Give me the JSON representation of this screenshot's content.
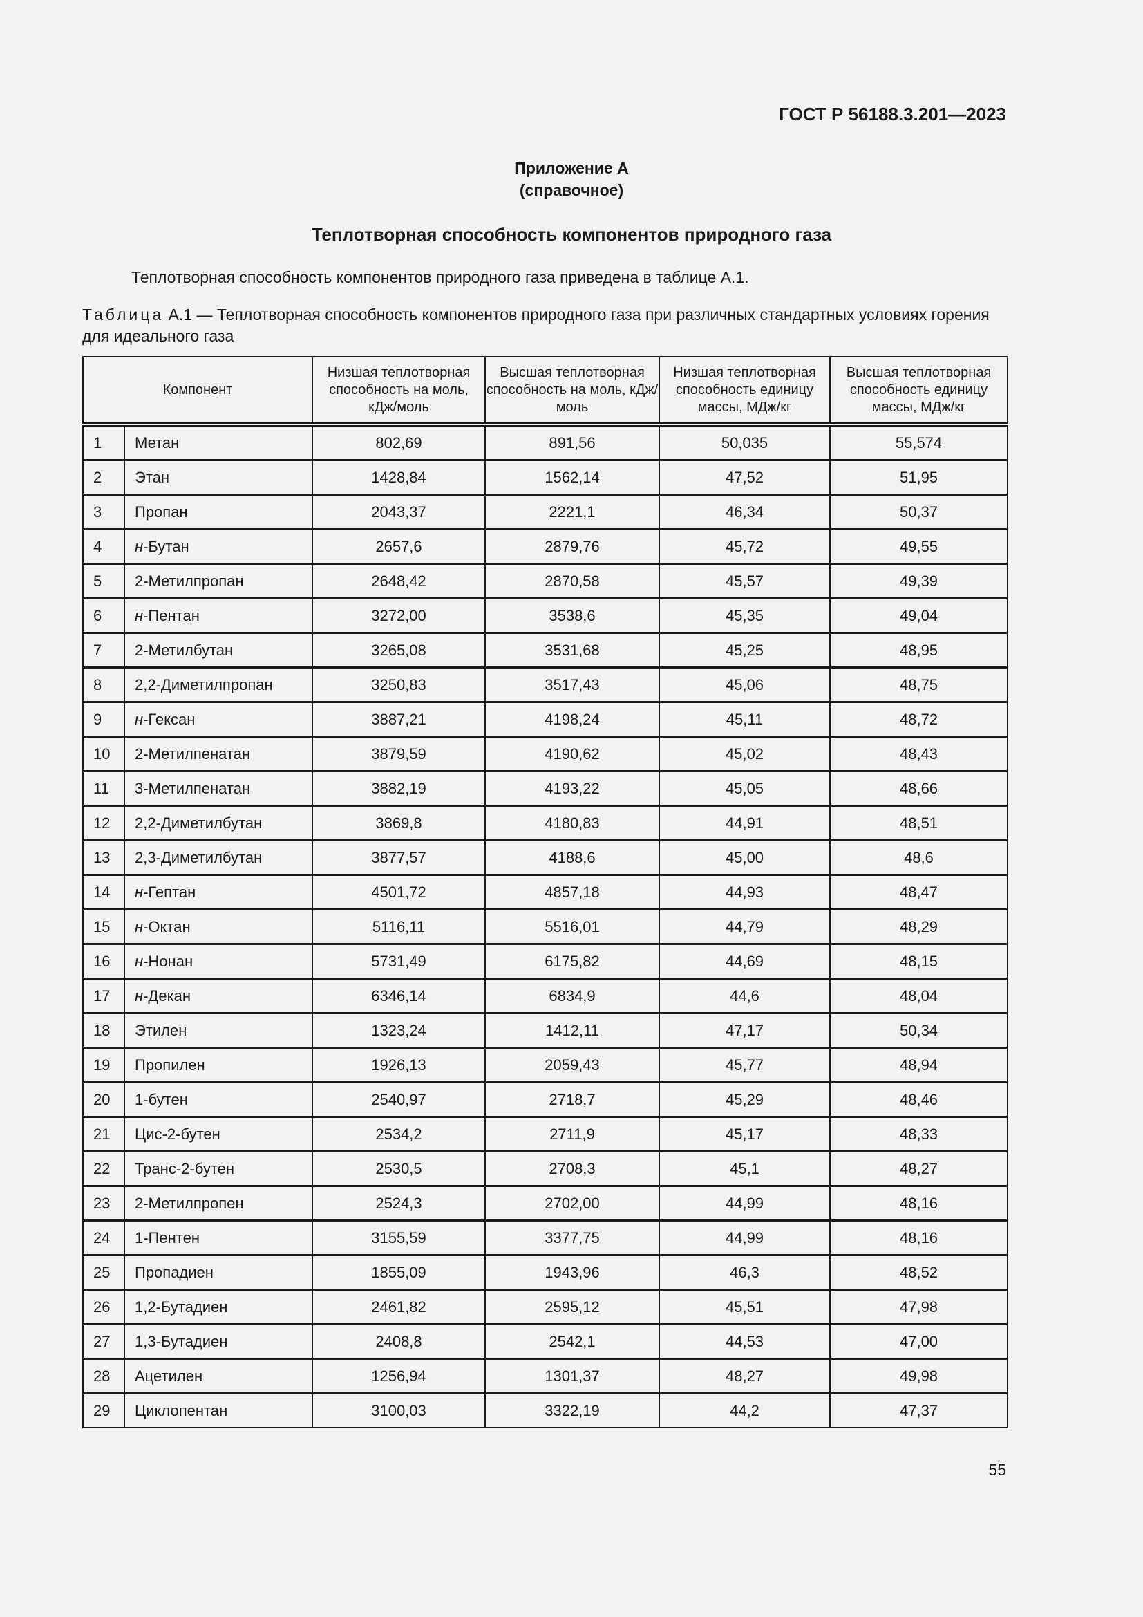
{
  "header": {
    "doc_code": "ГОСТ Р 56188.3.201—2023"
  },
  "appendix": {
    "title": "Приложение А",
    "type": "(справочное)"
  },
  "section_title": "Теплотворная способность компонентов природного газа",
  "intro": "Теплотворная способность компонентов природного газа приведена в таблице А.1.",
  "caption": {
    "label": "Таблица",
    "rest": " А.1 — Теплотворная способность компонентов природного газа при различных стандартных условиях горения для идеального газа"
  },
  "table": {
    "columns": [
      "Компонент",
      "Низшая теплотворная способность на моль, кДж/моль",
      "Высшая теплотворная способность на моль, кДж/моль",
      "Низшая теплотворная способность единицу массы, МДж/кг",
      "Высшая теплотворная способность единицу массы, МДж/кг"
    ],
    "rows": [
      {
        "n": "1",
        "prefix": "",
        "name": "Метан",
        "v": [
          "802,69",
          "891,56",
          "50,035",
          "55,574"
        ]
      },
      {
        "n": "2",
        "prefix": "",
        "name": "Этан",
        "v": [
          "1428,84",
          "1562,14",
          "47,52",
          "51,95"
        ]
      },
      {
        "n": "3",
        "prefix": "",
        "name": "Пропан",
        "v": [
          "2043,37",
          "2221,1",
          "46,34",
          "50,37"
        ]
      },
      {
        "n": "4",
        "prefix": "н",
        "name": "-Бутан",
        "v": [
          "2657,6",
          "2879,76",
          "45,72",
          "49,55"
        ]
      },
      {
        "n": "5",
        "prefix": "",
        "name": "2-Метилпропан",
        "v": [
          "2648,42",
          "2870,58",
          "45,57",
          "49,39"
        ]
      },
      {
        "n": "6",
        "prefix": "н",
        "name": "-Пентан",
        "v": [
          "3272,00",
          "3538,6",
          "45,35",
          "49,04"
        ]
      },
      {
        "n": "7",
        "prefix": "",
        "name": "2-Метилбутан",
        "v": [
          "3265,08",
          "3531,68",
          "45,25",
          "48,95"
        ]
      },
      {
        "n": "8",
        "prefix": "",
        "name": "2,2-Диметилпропан",
        "v": [
          "3250,83",
          "3517,43",
          "45,06",
          "48,75"
        ]
      },
      {
        "n": "9",
        "prefix": "н",
        "name": "-Гексан",
        "v": [
          "3887,21",
          "4198,24",
          "45,11",
          "48,72"
        ]
      },
      {
        "n": "10",
        "prefix": "",
        "name": "2-Метилпенатан",
        "v": [
          "3879,59",
          "4190,62",
          "45,02",
          "48,43"
        ]
      },
      {
        "n": "11",
        "prefix": "",
        "name": "3-Метилпенатан",
        "v": [
          "3882,19",
          "4193,22",
          "45,05",
          "48,66"
        ]
      },
      {
        "n": "12",
        "prefix": "",
        "name": "2,2-Диметилбутан",
        "v": [
          "3869,8",
          "4180,83",
          "44,91",
          "48,51"
        ]
      },
      {
        "n": "13",
        "prefix": "",
        "name": "2,3-Диметилбутан",
        "v": [
          "3877,57",
          "4188,6",
          "45,00",
          "48,6"
        ]
      },
      {
        "n": "14",
        "prefix": "н",
        "name": "-Гептан",
        "v": [
          "4501,72",
          "4857,18",
          "44,93",
          "48,47"
        ]
      },
      {
        "n": "15",
        "prefix": "н",
        "name": "-Октан",
        "v": [
          "5116,11",
          "5516,01",
          "44,79",
          "48,29"
        ]
      },
      {
        "n": "16",
        "prefix": "н",
        "name": "-Нонан",
        "v": [
          "5731,49",
          "6175,82",
          "44,69",
          "48,15"
        ]
      },
      {
        "n": "17",
        "prefix": "н",
        "name": "-Декан",
        "v": [
          "6346,14",
          "6834,9",
          "44,6",
          "48,04"
        ]
      },
      {
        "n": "18",
        "prefix": "",
        "name": "Этилен",
        "v": [
          "1323,24",
          "1412,11",
          "47,17",
          "50,34"
        ]
      },
      {
        "n": "19",
        "prefix": "",
        "name": "Пропилен",
        "v": [
          "1926,13",
          "2059,43",
          "45,77",
          "48,94"
        ]
      },
      {
        "n": "20",
        "prefix": "",
        "name": "1-бутен",
        "v": [
          "2540,97",
          "2718,7",
          "45,29",
          "48,46"
        ]
      },
      {
        "n": "21",
        "prefix": "",
        "name": "Цис-2-бутен",
        "v": [
          "2534,2",
          "2711,9",
          "45,17",
          "48,33"
        ]
      },
      {
        "n": "22",
        "prefix": "",
        "name": "Транс-2-бутен",
        "v": [
          "2530,5",
          "2708,3",
          "45,1",
          "48,27"
        ]
      },
      {
        "n": "23",
        "prefix": "",
        "name": "2-Метилпропен",
        "v": [
          "2524,3",
          "2702,00",
          "44,99",
          "48,16"
        ]
      },
      {
        "n": "24",
        "prefix": "",
        "name": "1-Пентен",
        "v": [
          "3155,59",
          "3377,75",
          "44,99",
          "48,16"
        ]
      },
      {
        "n": "25",
        "prefix": "",
        "name": "Пропадиен",
        "v": [
          "1855,09",
          "1943,96",
          "46,3",
          "48,52"
        ]
      },
      {
        "n": "26",
        "prefix": "",
        "name": "1,2-Бутадиен",
        "v": [
          "2461,82",
          "2595,12",
          "45,51",
          "47,98"
        ]
      },
      {
        "n": "27",
        "prefix": "",
        "name": "1,3-Бутадиен",
        "v": [
          "2408,8",
          "2542,1",
          "44,53",
          "47,00"
        ]
      },
      {
        "n": "28",
        "prefix": "",
        "name": "Ацетилен",
        "v": [
          "1256,94",
          "1301,37",
          "48,27",
          "49,98"
        ]
      },
      {
        "n": "29",
        "prefix": "",
        "name": "Циклопентан",
        "v": [
          "3100,03",
          "3322,19",
          "44,2",
          "47,37"
        ]
      }
    ]
  },
  "page_number": "55"
}
